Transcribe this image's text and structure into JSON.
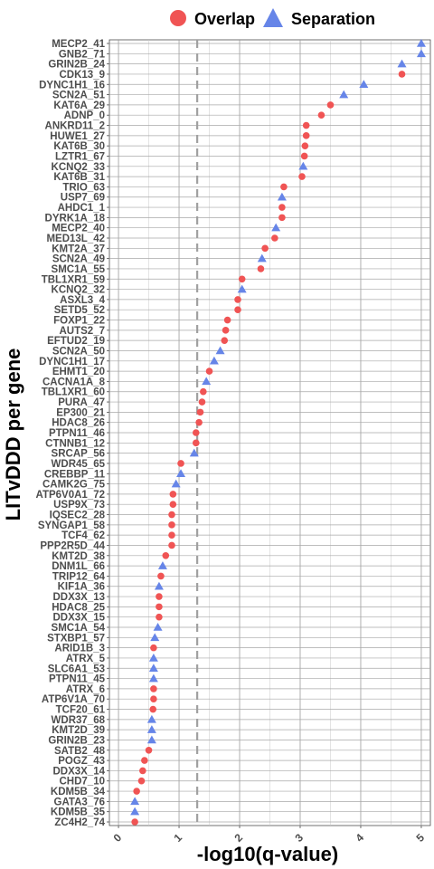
{
  "chart_data": {
    "type": "scatter",
    "xlabel": "-log10(q-value)",
    "ylabel": "LITvDDD per gene",
    "xlim": [
      -0.15,
      5.15
    ],
    "xticks": [
      "0",
      "1",
      "2",
      "3",
      "4",
      "5"
    ],
    "threshold_line": 1.3,
    "grid": true,
    "legend_position": "top",
    "legend": [
      {
        "name": "Overlap",
        "marker": "circle",
        "color": "#f05454"
      },
      {
        "name": "Separation",
        "marker": "triangle",
        "color": "#6685e8"
      }
    ],
    "genes": [
      "MECP2_41",
      "GNB2_71",
      "GRIN2B_24",
      "CDK13_9",
      "DYNC1H1_16",
      "SCN2A_51",
      "KAT6A_29",
      "ADNP_0",
      "ANKRD11_2",
      "HUWE1_27",
      "KAT6B_30",
      "LZTR1_67",
      "KCNQ2_33",
      "KAT6B_31",
      "TRIO_63",
      "USP7_69",
      "AHDC1_1",
      "DYRK1A_18",
      "MECP2_40",
      "MED13L_42",
      "KMT2A_37",
      "SCN2A_49",
      "SMC1A_55",
      "TBL1XR1_59",
      "KCNQ2_32",
      "ASXL3_4",
      "SETD5_52",
      "FOXP1_22",
      "AUTS2_7",
      "EFTUD2_19",
      "SCN2A_50",
      "DYNC1H1_17",
      "EHMT1_20",
      "CACNA1A_8",
      "TBL1XR1_60",
      "PURA_47",
      "EP300_21",
      "HDAC8_26",
      "PTPN11_46",
      "CTNNB1_12",
      "SRCAP_56",
      "WDR45_65",
      "CREBBP_11",
      "CAMK2G_75",
      "ATP6V0A1_72",
      "USP9X_73",
      "IQSEC2_28",
      "SYNGAP1_58",
      "TCF4_62",
      "PPP2R5D_44",
      "KMT2D_38",
      "DNM1L_66",
      "TRIP12_64",
      "KIF1A_36",
      "DDX3X_13",
      "HDAC8_25",
      "DDX3X_15",
      "SMC1A_54",
      "STXBP1_57",
      "ARID1B_3",
      "ATRX_5",
      "SLC6A1_53",
      "PTPN11_45",
      "ATRX_6",
      "ATP6V1A_70",
      "TCF20_61",
      "WDR37_68",
      "KMT2D_39",
      "GRIN2B_23",
      "SATB2_48",
      "POGZ_43",
      "DDX3X_14",
      "CHD7_10",
      "KDM5B_34",
      "GATA3_76",
      "KDM5B_35",
      "ZC4H2_74"
    ],
    "values": [
      5.0,
      5.0,
      4.68,
      4.68,
      4.05,
      3.72,
      3.5,
      3.35,
      3.1,
      3.1,
      3.08,
      3.07,
      3.05,
      3.03,
      2.73,
      2.7,
      2.7,
      2.7,
      2.6,
      2.58,
      2.42,
      2.37,
      2.35,
      2.04,
      2.04,
      1.97,
      1.97,
      1.8,
      1.77,
      1.75,
      1.68,
      1.58,
      1.5,
      1.45,
      1.4,
      1.38,
      1.35,
      1.33,
      1.28,
      1.28,
      1.25,
      1.03,
      1.03,
      0.95,
      0.9,
      0.9,
      0.88,
      0.88,
      0.88,
      0.88,
      0.78,
      0.73,
      0.7,
      0.67,
      0.67,
      0.67,
      0.67,
      0.65,
      0.6,
      0.58,
      0.58,
      0.58,
      0.58,
      0.58,
      0.58,
      0.57,
      0.55,
      0.55,
      0.55,
      0.5,
      0.43,
      0.4,
      0.38,
      0.3,
      0.27,
      0.27,
      0.27
    ],
    "groups": [
      "Separation",
      "Separation",
      "Separation",
      "Overlap",
      "Separation",
      "Separation",
      "Overlap",
      "Overlap",
      "Overlap",
      "Overlap",
      "Overlap",
      "Overlap",
      "Separation",
      "Overlap",
      "Overlap",
      "Separation",
      "Overlap",
      "Overlap",
      "Separation",
      "Overlap",
      "Overlap",
      "Separation",
      "Overlap",
      "Overlap",
      "Separation",
      "Overlap",
      "Overlap",
      "Overlap",
      "Overlap",
      "Overlap",
      "Separation",
      "Separation",
      "Overlap",
      "Separation",
      "Overlap",
      "Overlap",
      "Overlap",
      "Overlap",
      "Overlap",
      "Overlap",
      "Separation",
      "Overlap",
      "Separation",
      "Separation",
      "Overlap",
      "Overlap",
      "Overlap",
      "Overlap",
      "Overlap",
      "Overlap",
      "Overlap",
      "Separation",
      "Overlap",
      "Separation",
      "Overlap",
      "Overlap",
      "Overlap",
      "Separation",
      "Separation",
      "Overlap",
      "Separation",
      "Separation",
      "Separation",
      "Overlap",
      "Overlap",
      "Overlap",
      "Separation",
      "Separation",
      "Separation",
      "Overlap",
      "Overlap",
      "Overlap",
      "Overlap",
      "Overlap",
      "Separation",
      "Separation",
      "Overlap"
    ]
  }
}
